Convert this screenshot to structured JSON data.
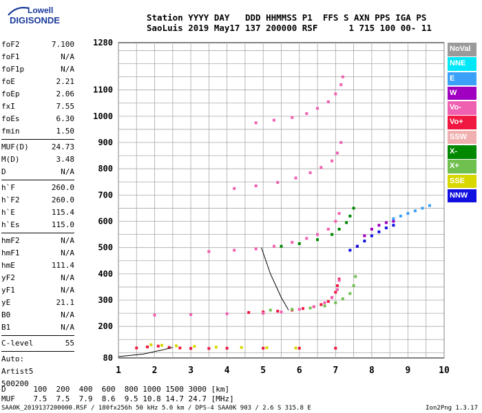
{
  "logo": {
    "line1": "Lowell",
    "line2": "DIGISONDE"
  },
  "header": {
    "line1": "Station YYYY DAY   DDD HHMMSS P1  FFS S AXN PPS IGA PS",
    "line2": "SaoLuis 2019 May17 137 200000 RSF      1 715 100 00- 11"
  },
  "params_groups": [
    [
      {
        "name": "foF2",
        "value": "7.100"
      },
      {
        "name": "foF1",
        "value": "N/A"
      },
      {
        "name": "foF1p",
        "value": "N/A"
      },
      {
        "name": "foE",
        "value": "2.21"
      },
      {
        "name": "foEp",
        "value": "2.06"
      },
      {
        "name": "fxI",
        "value": "7.55"
      },
      {
        "name": "foEs",
        "value": "6.30"
      },
      {
        "name": "fmin",
        "value": "1.50"
      }
    ],
    [
      {
        "name": "MUF(D)",
        "value": "24.73"
      },
      {
        "name": "M(D)",
        "value": "3.48"
      },
      {
        "name": "D",
        "value": "N/A"
      }
    ],
    [
      {
        "name": "h`F",
        "value": "260.0"
      },
      {
        "name": "h`F2",
        "value": "260.0"
      },
      {
        "name": "h`E",
        "value": "115.4"
      },
      {
        "name": "h`Es",
        "value": "115.0"
      }
    ],
    [
      {
        "name": "hmF2",
        "value": "N/A"
      },
      {
        "name": "hmF1",
        "value": "N/A"
      },
      {
        "name": "hmE",
        "value": "111.4"
      },
      {
        "name": "yF2",
        "value": "N/A"
      },
      {
        "name": "yF1",
        "value": "N/A"
      },
      {
        "name": "yE",
        "value": "21.1"
      },
      {
        "name": "B0",
        "value": "N/A"
      },
      {
        "name": "B1",
        "value": "N/A"
      }
    ],
    [
      {
        "name": "C-level",
        "value": "55"
      }
    ]
  ],
  "autoscale": {
    "line1": "Auto:",
    "line2": "Artist5",
    "line3": "500200"
  },
  "legend": [
    {
      "label": "NoVal",
      "color": "#9a9a9a"
    },
    {
      "label": "NNE",
      "color": "#00e8f8"
    },
    {
      "label": "E",
      "color": "#3aa0f8"
    },
    {
      "label": "W",
      "color": "#a000c0"
    },
    {
      "label": "Vo-",
      "color": "#f060b0"
    },
    {
      "label": "Vo+",
      "color": "#f01840"
    },
    {
      "label": "SSW",
      "color": "#f0b0b0"
    },
    {
      "label": "X-",
      "color": "#008800"
    },
    {
      "label": "X+",
      "color": "#70c050"
    },
    {
      "label": "SSE",
      "color": "#d8d800"
    },
    {
      "label": "NNW",
      "color": "#1010e0"
    }
  ],
  "footer": {
    "line1": "D      100  200  400  600  800 1000 1500 3000 [km]",
    "line2": "MUF    7.5  7.5  7.9  8.6  9.5 10.8 14.7 24.7 [MHz]"
  },
  "bottom_line": "SAA0K_2019137200000.RSF / 180fx256h 50 kHz 5.0 km / DPS-4 SAA0K 903 / 2.6 S 315.8 E",
  "version": "Ion2Png 1.3.17",
  "chart_data": {
    "type": "scatter",
    "title": "",
    "xlabel": "",
    "ylabel": "",
    "xlim": [
      1,
      10
    ],
    "ylim": [
      80,
      1280
    ],
    "x_ticks": [
      1,
      2,
      3,
      4,
      5,
      6,
      7,
      8,
      9,
      10
    ],
    "y_ticks": [
      80,
      200,
      300,
      400,
      500,
      600,
      700,
      800,
      900,
      1000,
      1100,
      1280
    ],
    "grid": true,
    "series": [
      {
        "name": "Vo+",
        "color": "#f01840",
        "x": [
          4.6,
          5.0,
          5.4,
          5.8,
          6.1,
          6.4,
          6.6,
          6.8,
          6.9,
          7.0,
          7.05,
          7.1
        ],
        "y": [
          253,
          255,
          258,
          262,
          268,
          275,
          283,
          295,
          310,
          330,
          355,
          380
        ]
      },
      {
        "name": "Vo-",
        "color": "#f060b0",
        "x": [
          2.0,
          3.0,
          4.0,
          5.0,
          5.5,
          6.0,
          6.4,
          6.7,
          6.9,
          7.05,
          7.1
        ],
        "y": [
          243,
          245,
          248,
          250,
          255,
          265,
          275,
          290,
          310,
          340,
          375
        ]
      },
      {
        "name": "Vo- 2hop",
        "color": "#f060b0",
        "x": [
          3.5,
          4.2,
          4.8,
          5.3,
          5.8,
          6.2,
          6.5,
          6.8,
          7.0,
          7.1
        ],
        "y": [
          485,
          490,
          495,
          505,
          520,
          535,
          550,
          570,
          600,
          630
        ]
      },
      {
        "name": "Vo- 3hop",
        "color": "#f060b0",
        "x": [
          4.2,
          4.8,
          5.4,
          5.9,
          6.3,
          6.6,
          6.9,
          7.05,
          7.15
        ],
        "y": [
          725,
          735,
          748,
          765,
          785,
          805,
          830,
          860,
          900
        ]
      },
      {
        "name": "Vo- 4hop",
        "color": "#f060b0",
        "x": [
          4.8,
          5.3,
          5.8,
          6.2,
          6.5,
          6.8,
          7.0,
          7.15,
          7.2
        ],
        "y": [
          975,
          985,
          995,
          1010,
          1030,
          1055,
          1085,
          1120,
          1150
        ]
      },
      {
        "name": "X+",
        "color": "#70c050",
        "x": [
          5.2,
          5.8,
          6.3,
          6.7,
          7.0,
          7.2,
          7.4,
          7.5,
          7.55
        ],
        "y": [
          262,
          265,
          270,
          278,
          290,
          305,
          325,
          355,
          390
        ]
      },
      {
        "name": "X-",
        "color": "#008800",
        "x": [
          5.5,
          6.0,
          6.5,
          6.9,
          7.1,
          7.3,
          7.4,
          7.5
        ],
        "y": [
          505,
          515,
          530,
          550,
          570,
          595,
          620,
          650
        ]
      },
      {
        "name": "W",
        "color": "#a000c0",
        "x": [
          7.6,
          7.8,
          8.0,
          8.2,
          8.4,
          8.6
        ],
        "y": [
          505,
          545,
          570,
          585,
          595,
          600
        ]
      },
      {
        "name": "NNW",
        "color": "#1010e0",
        "x": [
          7.4,
          7.6,
          7.8,
          8.0,
          8.2,
          8.4,
          8.6
        ],
        "y": [
          490,
          505,
          525,
          545,
          560,
          575,
          585
        ]
      },
      {
        "name": "E",
        "color": "#3aa0f8",
        "x": [
          8.6,
          8.8,
          9.0,
          9.2,
          9.4,
          9.6
        ],
        "y": [
          610,
          620,
          630,
          640,
          650,
          660
        ]
      },
      {
        "name": "Es",
        "color": "#f01840",
        "x": [
          1.5,
          1.8,
          2.1,
          2.4,
          2.7,
          3.0,
          3.5,
          4.0,
          5.0,
          6.0,
          7.0
        ],
        "y": [
          118,
          122,
          125,
          120,
          118,
          116,
          116,
          117,
          117,
          117,
          117
        ]
      },
      {
        "name": "SSE",
        "color": "#d8d800",
        "x": [
          1.9,
          2.2,
          2.6,
          3.1,
          3.7,
          4.4,
          5.1,
          5.9
        ],
        "y": [
          130,
          128,
          126,
          124,
          121,
          120,
          119,
          118
        ]
      }
    ],
    "annotations": [
      {
        "type": "profile-line",
        "x": [
          4.95,
          5.2,
          5.5,
          5.7
        ],
        "y": [
          500,
          400,
          310,
          262
        ]
      },
      {
        "type": "profile-line",
        "x": [
          1.0,
          1.7,
          2.2,
          2.5
        ],
        "y": [
          85,
          95,
          110,
          120
        ]
      }
    ]
  }
}
